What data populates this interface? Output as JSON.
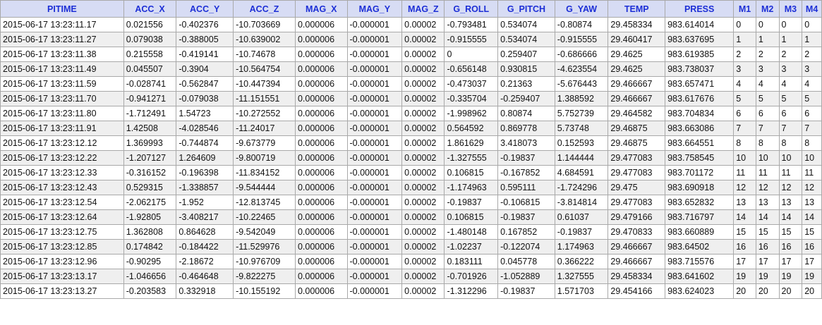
{
  "columns": [
    "PITIME",
    "ACC_X",
    "ACC_Y",
    "ACC_Z",
    "MAG_X",
    "MAG_Y",
    "MAG_Z",
    "G_ROLL",
    "G_PITCH",
    "G_YAW",
    "TEMP",
    "PRESS",
    "M1",
    "M2",
    "M3",
    "M4"
  ],
  "rows": [
    [
      "2015-06-17 13:23:11.17",
      "0.021556",
      "-0.402376",
      "-10.703669",
      "0.000006",
      "-0.000001",
      "0.00002",
      "-0.793481",
      "0.534074",
      "-0.80874",
      "29.458334",
      "983.614014",
      "0",
      "0",
      "0",
      "0"
    ],
    [
      "2015-06-17 13:23:11.27",
      "0.079038",
      "-0.388005",
      "-10.639002",
      "0.000006",
      "-0.000001",
      "0.00002",
      "-0.915555",
      "0.534074",
      "-0.915555",
      "29.460417",
      "983.637695",
      "1",
      "1",
      "1",
      "1"
    ],
    [
      "2015-06-17 13:23:11.38",
      "0.215558",
      "-0.419141",
      "-10.74678",
      "0.000006",
      "-0.000001",
      "0.00002",
      "0",
      "0.259407",
      "-0.686666",
      "29.4625",
      "983.619385",
      "2",
      "2",
      "2",
      "2"
    ],
    [
      "2015-06-17 13:23:11.49",
      "0.045507",
      "-0.3904",
      "-10.564754",
      "0.000006",
      "-0.000001",
      "0.00002",
      "-0.656148",
      "0.930815",
      "-4.623554",
      "29.4625",
      "983.738037",
      "3",
      "3",
      "3",
      "3"
    ],
    [
      "2015-06-17 13:23:11.59",
      "-0.028741",
      "-0.562847",
      "-10.447394",
      "0.000006",
      "-0.000001",
      "0.00002",
      "-0.473037",
      "0.21363",
      "-5.676443",
      "29.466667",
      "983.657471",
      "4",
      "4",
      "4",
      "4"
    ],
    [
      "2015-06-17 13:23:11.70",
      "-0.941271",
      "-0.079038",
      "-11.151551",
      "0.000006",
      "-0.000001",
      "0.00002",
      "-0.335704",
      "-0.259407",
      "1.388592",
      "29.466667",
      "983.617676",
      "5",
      "5",
      "5",
      "5"
    ],
    [
      "2015-06-17 13:23:11.80",
      "-1.712491",
      "1.54723",
      "-10.272552",
      "0.000006",
      "-0.000001",
      "0.00002",
      "-1.998962",
      "0.80874",
      "5.752739",
      "29.464582",
      "983.704834",
      "6",
      "6",
      "6",
      "6"
    ],
    [
      "2015-06-17 13:23:11.91",
      "1.42508",
      "-4.028546",
      "-11.24017",
      "0.000006",
      "-0.000001",
      "0.00002",
      "0.564592",
      "0.869778",
      "5.73748",
      "29.46875",
      "983.663086",
      "7",
      "7",
      "7",
      "7"
    ],
    [
      "2015-06-17 13:23:12.12",
      "1.369993",
      "-0.744874",
      "-9.673779",
      "0.000006",
      "-0.000001",
      "0.00002",
      "1.861629",
      "3.418073",
      "0.152593",
      "29.46875",
      "983.664551",
      "8",
      "8",
      "8",
      "8"
    ],
    [
      "2015-06-17 13:23:12.22",
      "-1.207127",
      "1.264609",
      "-9.800719",
      "0.000006",
      "-0.000001",
      "0.00002",
      "-1.327555",
      "-0.19837",
      "1.144444",
      "29.477083",
      "983.758545",
      "10",
      "10",
      "10",
      "10"
    ],
    [
      "2015-06-17 13:23:12.33",
      "-0.316152",
      "-0.196398",
      "-11.834152",
      "0.000006",
      "-0.000001",
      "0.00002",
      "0.106815",
      "-0.167852",
      "4.684591",
      "29.477083",
      "983.701172",
      "11",
      "11",
      "11",
      "11"
    ],
    [
      "2015-06-17 13:23:12.43",
      "0.529315",
      "-1.338857",
      "-9.544444",
      "0.000006",
      "-0.000001",
      "0.00002",
      "-1.174963",
      "0.595111",
      "-1.724296",
      "29.475",
      "983.690918",
      "12",
      "12",
      "12",
      "12"
    ],
    [
      "2015-06-17 13:23:12.54",
      "-2.062175",
      "-1.952",
      "-12.813745",
      "0.000006",
      "-0.000001",
      "0.00002",
      "-0.19837",
      "-0.106815",
      "-3.814814",
      "29.477083",
      "983.652832",
      "13",
      "13",
      "13",
      "13"
    ],
    [
      "2015-06-17 13:23:12.64",
      "-1.92805",
      "-3.408217",
      "-10.22465",
      "0.000006",
      "-0.000001",
      "0.00002",
      "0.106815",
      "-0.19837",
      "0.61037",
      "29.479166",
      "983.716797",
      "14",
      "14",
      "14",
      "14"
    ],
    [
      "2015-06-17 13:23:12.75",
      "1.362808",
      "0.864628",
      "-9.542049",
      "0.000006",
      "-0.000001",
      "0.00002",
      "-1.480148",
      "0.167852",
      "-0.19837",
      "29.470833",
      "983.660889",
      "15",
      "15",
      "15",
      "15"
    ],
    [
      "2015-06-17 13:23:12.85",
      "0.174842",
      "-0.184422",
      "-11.529976",
      "0.000006",
      "-0.000001",
      "0.00002",
      "-1.02237",
      "-0.122074",
      "1.174963",
      "29.466667",
      "983.64502",
      "16",
      "16",
      "16",
      "16"
    ],
    [
      "2015-06-17 13:23:12.96",
      "-0.90295",
      "-2.18672",
      "-10.976709",
      "0.000006",
      "-0.000001",
      "0.00002",
      "0.183111",
      "0.045778",
      "0.366222",
      "29.466667",
      "983.715576",
      "17",
      "17",
      "17",
      "17"
    ],
    [
      "2015-06-17 13:23:13.17",
      "-1.046656",
      "-0.464648",
      "-9.822275",
      "0.000006",
      "-0.000001",
      "0.00002",
      "-0.701926",
      "-1.052889",
      "1.327555",
      "29.458334",
      "983.641602",
      "19",
      "19",
      "19",
      "19"
    ],
    [
      "2015-06-17 13:23:13.27",
      "-0.203583",
      "0.332918",
      "-10.155192",
      "0.000006",
      "-0.000001",
      "0.00002",
      "-1.312296",
      "-0.19837",
      "1.571703",
      "29.454166",
      "983.624023",
      "20",
      "20",
      "20",
      "20"
    ]
  ]
}
